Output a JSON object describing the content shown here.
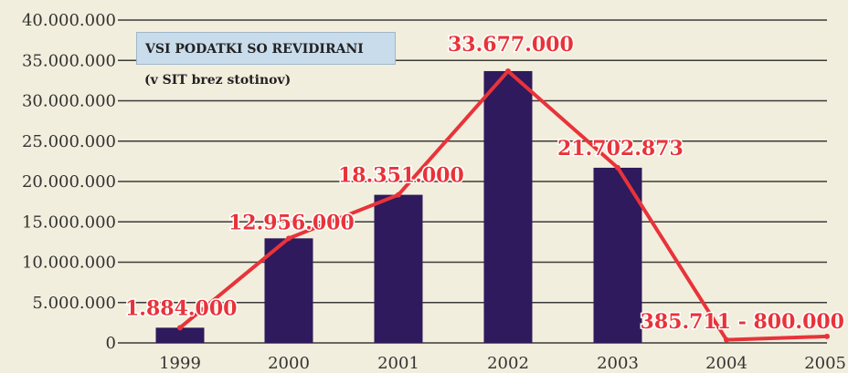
{
  "chart_data": {
    "type": "bar",
    "title": "",
    "categories": [
      "1999",
      "2000",
      "2001",
      "2002",
      "2003",
      "2004",
      "2005"
    ],
    "bar_values": [
      1884000,
      12956000,
      18351000,
      33677000,
      21702873,
      null,
      null
    ],
    "line_values": [
      1884000,
      12956000,
      18351000,
      33677000,
      21702873,
      385711,
      800000
    ],
    "data_labels": [
      "1.884.000",
      "12.956.000",
      "18.351.000",
      "33.677.000",
      "21.702.873",
      "385.711 - 800.000"
    ],
    "y_ticks": [
      "0",
      "5.000.000",
      "10.000.000",
      "15.000.000",
      "20.000.000",
      "25.000.000",
      "30.000.000",
      "35.000.000",
      "40.000.000"
    ],
    "y_tick_values": [
      0,
      5000000,
      10000000,
      15000000,
      20000000,
      25000000,
      30000000,
      35000000,
      40000000
    ],
    "ylim": [
      0,
      40000000
    ],
    "grid": true,
    "colors": {
      "bar": "#2e1a5c",
      "line": "#e8333a",
      "grid": "#3a3a3a",
      "background": "#f2eedd"
    }
  },
  "notice": {
    "title": "VSI PODATKI SO REVIDIRANI",
    "subtitle": "(v SIT brez stotinov)"
  }
}
